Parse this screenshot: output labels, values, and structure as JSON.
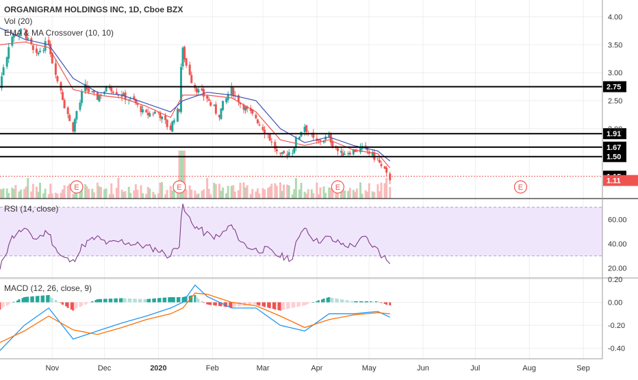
{
  "header": {
    "title": "ORGANIGRAM HOLDINGS INC, 1D, Cboe BZX",
    "vol_label": "Vol (20)",
    "ema_label": "EMA & MA Crossover (10, 10)"
  },
  "colors": {
    "up": "#26a69a",
    "down": "#ef5350",
    "ema": "#ef5350",
    "ma": "#3f51b5",
    "rsi": "#7e3b8a",
    "rsi_band": "#f0e6fb",
    "macd_line": "#2196f3",
    "signal_line": "#ff6d00",
    "hist_up": "#26a69a",
    "hist_up_light": "#b2dfdb",
    "hist_down": "#ef5350",
    "hist_down_light": "#ffcdd2",
    "grid": "#eeeeee",
    "axis_text": "#333333",
    "last_price_bg": "#ef5350"
  },
  "chart_data": [
    {
      "type": "candlestick",
      "title": "ORGANIGRAM HOLDINGS INC, 1D, Cboe BZX",
      "x_axis": {
        "tick_labels": [
          "Nov",
          "Dec",
          "2020",
          "Feb",
          "Mar",
          "Apr",
          "May",
          "Jun",
          "Jul",
          "Aug",
          "Sep"
        ],
        "start": "2019-10-02",
        "end": "2020-09-12"
      },
      "y_axis": {
        "tick_labels": [
          "4.00",
          "3.50",
          "3.00",
          "2.50",
          "2.00"
        ],
        "range": [
          0.75,
          4.3
        ]
      },
      "horizontal_levels": [
        {
          "value": 2.75,
          "label": "2.75"
        },
        {
          "value": 1.91,
          "label": "1.91"
        },
        {
          "value": 1.67,
          "label": "1.67"
        },
        {
          "value": 1.5,
          "label": "1.50"
        },
        {
          "value": 1.15,
          "label": "1.15"
        }
      ],
      "last_price": {
        "value": 1.11,
        "label": "1.11"
      },
      "earnings_markers": [
        {
          "date": "2019-11-15",
          "label": "E"
        },
        {
          "date": "2020-01-13",
          "label": "E"
        },
        {
          "date": "2020-04-13",
          "label": "E"
        },
        {
          "date": "2020-07-27",
          "label": "E"
        }
      ],
      "series": [
        {
          "name": "Price",
          "x": [
            "2019-10-02",
            "2019-10-09",
            "2019-10-16",
            "2019-10-23",
            "2019-10-30",
            "2019-11-06",
            "2019-11-13",
            "2019-11-20",
            "2019-11-27",
            "2019-12-04",
            "2019-12-11",
            "2019-12-18",
            "2019-12-25",
            "2020-01-01",
            "2020-01-08",
            "2020-01-13",
            "2020-01-15",
            "2020-01-22",
            "2020-01-29",
            "2020-02-05",
            "2020-02-12",
            "2020-02-19",
            "2020-02-26",
            "2020-03-04",
            "2020-03-11",
            "2020-03-18",
            "2020-03-25",
            "2020-04-01",
            "2020-04-08",
            "2020-04-15",
            "2020-04-22",
            "2020-04-29",
            "2020-05-06",
            "2020-05-13"
          ],
          "values": [
            2.75,
            3.65,
            3.75,
            3.3,
            3.55,
            2.7,
            2.0,
            2.75,
            2.55,
            2.75,
            2.6,
            2.5,
            2.25,
            2.3,
            2.0,
            2.35,
            3.4,
            2.75,
            2.55,
            2.25,
            2.7,
            2.4,
            2.2,
            1.9,
            1.5,
            1.6,
            2.05,
            1.75,
            1.85,
            1.55,
            1.6,
            1.65,
            1.45,
            1.11
          ]
        },
        {
          "name": "EMA",
          "x": [
            "2019-10-02",
            "2019-10-16",
            "2019-10-30",
            "2019-11-13",
            "2019-11-27",
            "2019-12-11",
            "2019-12-25",
            "2020-01-08",
            "2020-01-15",
            "2020-01-29",
            "2020-02-12",
            "2020-02-26",
            "2020-03-11",
            "2020-03-25",
            "2020-04-08",
            "2020-04-22",
            "2020-05-06",
            "2020-05-13"
          ],
          "values": [
            3.5,
            3.55,
            3.45,
            2.7,
            2.6,
            2.55,
            2.4,
            2.2,
            2.6,
            2.6,
            2.55,
            2.3,
            1.8,
            1.7,
            1.8,
            1.62,
            1.55,
            1.3
          ]
        },
        {
          "name": "MA",
          "x": [
            "2019-10-02",
            "2019-10-16",
            "2019-10-30",
            "2019-11-13",
            "2019-11-27",
            "2019-12-11",
            "2019-12-25",
            "2020-01-08",
            "2020-01-15",
            "2020-01-29",
            "2020-02-12",
            "2020-02-26",
            "2020-03-11",
            "2020-03-25",
            "2020-04-08",
            "2020-04-22",
            "2020-05-06",
            "2020-05-13"
          ],
          "values": [
            3.8,
            3.6,
            3.5,
            2.9,
            2.65,
            2.6,
            2.45,
            2.3,
            2.5,
            2.65,
            2.6,
            2.5,
            2.0,
            1.75,
            1.85,
            1.7,
            1.6,
            1.42
          ]
        }
      ]
    },
    {
      "type": "line",
      "title": "RSI (14, close)",
      "y_axis": {
        "tick_labels": [
          "60.00",
          "40.00",
          "20.00"
        ],
        "range": [
          13,
          76
        ],
        "band": [
          30,
          70
        ]
      },
      "series": [
        {
          "name": "RSI",
          "x": [
            "2019-10-02",
            "2019-10-09",
            "2019-10-16",
            "2019-10-23",
            "2019-10-30",
            "2019-11-06",
            "2019-11-13",
            "2019-11-20",
            "2019-11-27",
            "2019-12-04",
            "2019-12-11",
            "2019-12-18",
            "2019-12-25",
            "2020-01-01",
            "2020-01-08",
            "2020-01-13",
            "2020-01-15",
            "2020-01-22",
            "2020-01-29",
            "2020-02-05",
            "2020-02-12",
            "2020-02-19",
            "2020-02-26",
            "2020-03-04",
            "2020-03-11",
            "2020-03-18",
            "2020-03-25",
            "2020-04-01",
            "2020-04-08",
            "2020-04-15",
            "2020-04-22",
            "2020-04-29",
            "2020-05-06",
            "2020-05-13"
          ],
          "values": [
            18,
            45,
            52,
            44,
            50,
            30,
            25,
            40,
            45,
            40,
            42,
            40,
            38,
            35,
            30,
            40,
            70,
            55,
            48,
            45,
            55,
            40,
            35,
            35,
            30,
            28,
            55,
            42,
            45,
            40,
            38,
            45,
            35,
            25
          ]
        }
      ]
    },
    {
      "type": "line",
      "title": "MACD (12, 26, close, 9)",
      "y_axis": {
        "tick_labels": [
          "0.20",
          "0.00",
          "-0.20",
          "-0.40"
        ],
        "range": [
          -0.48,
          0.2
        ]
      },
      "series": [
        {
          "name": "MACD",
          "x": [
            "2019-10-02",
            "2019-10-16",
            "2019-10-30",
            "2019-11-13",
            "2019-11-27",
            "2019-12-11",
            "2019-12-25",
            "2020-01-08",
            "2020-01-15",
            "2020-01-22",
            "2020-01-29",
            "2020-02-12",
            "2020-02-26",
            "2020-03-11",
            "2020-03-25",
            "2020-04-08",
            "2020-04-22",
            "2020-05-06",
            "2020-05-13"
          ],
          "values": [
            -0.42,
            -0.2,
            -0.05,
            -0.32,
            -0.25,
            -0.18,
            -0.12,
            -0.05,
            0.0,
            0.15,
            0.05,
            -0.05,
            -0.05,
            -0.2,
            -0.25,
            -0.1,
            -0.1,
            -0.08,
            -0.13
          ]
        },
        {
          "name": "Signal",
          "x": [
            "2019-10-02",
            "2019-10-16",
            "2019-10-30",
            "2019-11-13",
            "2019-11-27",
            "2019-12-11",
            "2019-12-25",
            "2020-01-08",
            "2020-01-15",
            "2020-01-22",
            "2020-01-29",
            "2020-02-12",
            "2020-02-26",
            "2020-03-11",
            "2020-03-25",
            "2020-04-08",
            "2020-04-22",
            "2020-05-06",
            "2020-05-13"
          ],
          "values": [
            -0.35,
            -0.25,
            -0.12,
            -0.24,
            -0.28,
            -0.22,
            -0.15,
            -0.1,
            -0.05,
            0.08,
            0.07,
            0.0,
            -0.03,
            -0.12,
            -0.22,
            -0.15,
            -0.11,
            -0.09,
            -0.1
          ]
        }
      ]
    }
  ]
}
